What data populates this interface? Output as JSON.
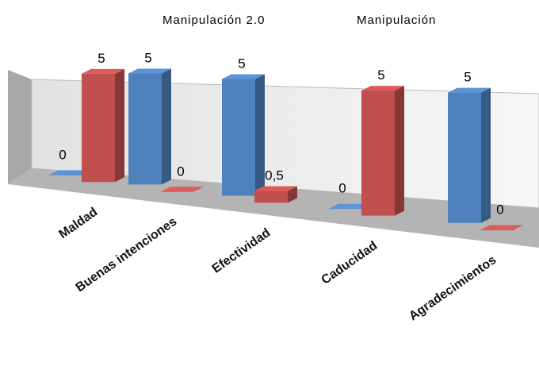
{
  "chart_data": {
    "type": "bar3d",
    "categories": [
      "Maldad",
      "Buenas intenciones",
      "Efectividad",
      "Caducidad",
      "Agradecimientos"
    ],
    "series": [
      {
        "name": "Manipulación 2.0",
        "color": "#4f81bd",
        "values": [
          0,
          5,
          5,
          0,
          5
        ]
      },
      {
        "name": "Manipulación",
        "color": "#c0504d",
        "values": [
          5,
          0,
          0.5,
          5,
          0
        ],
        "value_labels": [
          "5",
          "0",
          "0,5",
          "5",
          "0"
        ]
      }
    ],
    "ylim": [
      0,
      5
    ],
    "legend": "top"
  }
}
